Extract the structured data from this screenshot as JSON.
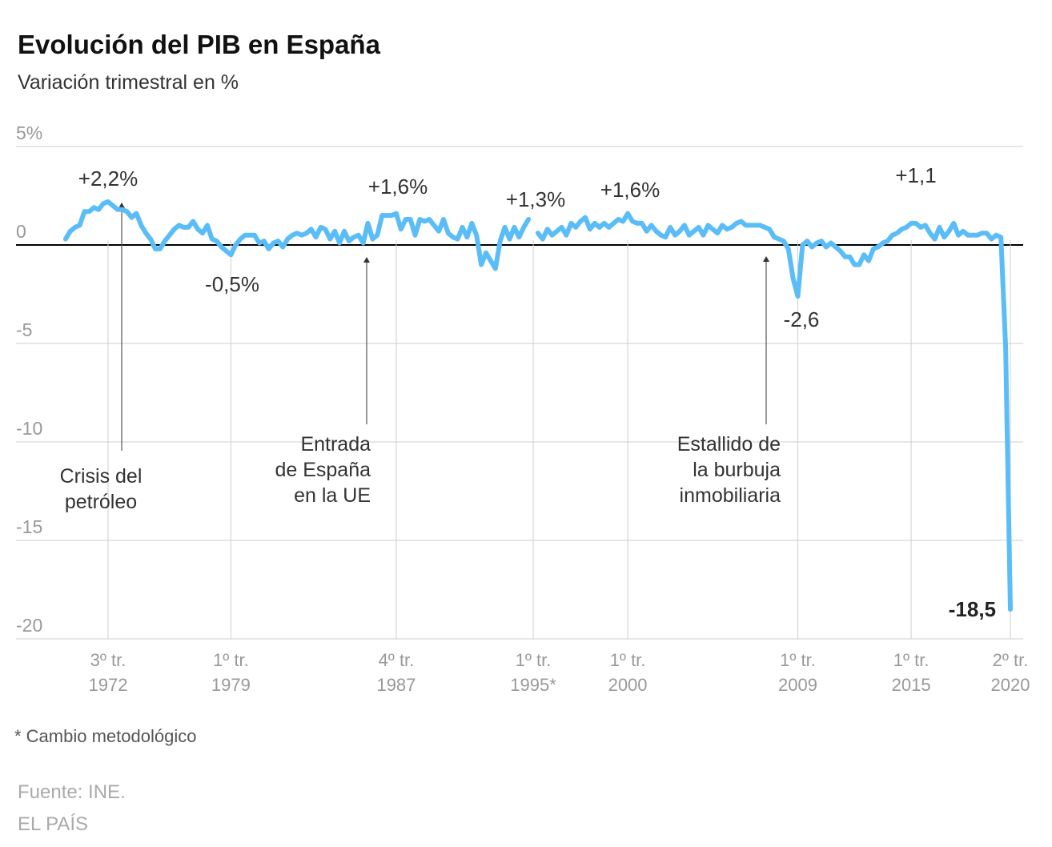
{
  "title": "Evolución del PIB en España",
  "subtitle": "Variación trimestral en %",
  "footnote": "* Cambio metodológico",
  "source": "Fuente: INE.",
  "publisher": "EL PAÍS",
  "chart_data": {
    "type": "line",
    "title": "Evolución del PIB en España",
    "subtitle": "Variación trimestral en %",
    "ylim": [
      -20,
      5
    ],
    "grid": true,
    "line_color": "#5bbdf7",
    "zero_line_color": "#000000",
    "y_ticks": [
      {
        "value": 5,
        "label": "5%"
      },
      {
        "value": 0,
        "label": "0"
      },
      {
        "value": -5,
        "label": "-5"
      },
      {
        "value": -10,
        "label": "-10"
      },
      {
        "value": -15,
        "label": "-15"
      },
      {
        "value": -20,
        "label": "-20"
      }
    ],
    "x_ticks": [
      {
        "year": 1972,
        "quarter": 3,
        "line1": "3º tr.",
        "line2": "1972"
      },
      {
        "year": 1979,
        "quarter": 1,
        "line1": "1º tr.",
        "line2": "1979"
      },
      {
        "year": 1987,
        "quarter": 4,
        "line1": "4º tr.",
        "line2": "1987"
      },
      {
        "year": 1995,
        "quarter": 1,
        "line1": "1º tr.",
        "line2": "1995*"
      },
      {
        "year": 2000,
        "quarter": 1,
        "line1": "1º tr.",
        "line2": "2000"
      },
      {
        "year": 2009,
        "quarter": 1,
        "line1": "1º tr.",
        "line2": "2009"
      },
      {
        "year": 2015,
        "quarter": 1,
        "line1": "1º tr.",
        "line2": "2015"
      },
      {
        "year": 2020,
        "quarter": 2,
        "line1": "2º tr.",
        "line2": "2020"
      }
    ],
    "series": [
      {
        "start": {
          "year": 1970,
          "quarter": 2
        },
        "frequency": "quarterly",
        "values": [
          0.3,
          0.7,
          0.9,
          1.0,
          1.7,
          1.7,
          1.9,
          1.8,
          2.1,
          2.2,
          2.0,
          1.8,
          1.8,
          1.7,
          1.4,
          1.6,
          1.0,
          0.6,
          0.3,
          -0.2,
          -0.2,
          0.2,
          0.5,
          0.8,
          1.0,
          0.9,
          0.9,
          1.2,
          0.8,
          0.6,
          1.0,
          0.3,
          0.2,
          -0.1,
          -0.3,
          -0.5,
          0.0,
          0.3,
          0.5,
          0.5,
          0.5,
          0.1,
          0.2,
          -0.2,
          0.1,
          0.2,
          -0.1,
          0.3,
          0.5,
          0.6,
          0.5,
          0.6,
          0.8,
          0.4,
          0.9,
          0.8,
          0.3,
          0.7,
          0.1,
          0.7,
          0.2,
          0.4,
          0.5,
          0.1,
          1.1,
          0.3,
          0.5,
          1.5,
          1.5,
          1.5,
          1.6,
          0.8,
          1.3,
          1.3,
          0.5,
          1.3,
          1.2,
          1.3,
          1.0,
          0.7,
          1.3,
          0.6,
          0.4,
          0.3,
          0.9,
          0.4,
          1.1,
          0.5,
          -1.0,
          -0.4,
          -0.8,
          -1.2,
          0.2,
          0.9,
          0.3,
          0.9,
          0.4,
          0.9,
          1.3
        ]
      },
      {
        "start": {
          "year": 1995,
          "quarter": 2
        },
        "frequency": "quarterly",
        "values": [
          0.6,
          0.3,
          0.8,
          0.5,
          0.7,
          0.9,
          0.5,
          1.1,
          0.9,
          1.2,
          1.4,
          0.8,
          1.1,
          0.9,
          1.1,
          0.9,
          1.1,
          1.3,
          1.2,
          1.6,
          1.2,
          1.1,
          1.1,
          0.7,
          1.0,
          0.7,
          0.5,
          0.4,
          0.9,
          0.5,
          0.7,
          1.0,
          0.5,
          0.7,
          0.9,
          0.5,
          1.0,
          0.8,
          0.6,
          1.0,
          0.8,
          0.9,
          1.1,
          1.2,
          1.0,
          1.0,
          1.0,
          1.0,
          0.9,
          0.8,
          0.4,
          0.3,
          0.2,
          -0.2,
          -1.7,
          -2.6,
          0.0,
          0.2,
          -0.1,
          0.1,
          0.2,
          -0.1,
          0.1,
          -0.1,
          -0.3,
          -0.6,
          -0.6,
          -1.0,
          -1.0,
          -0.5,
          -0.8,
          -0.2,
          -0.1,
          0.1,
          0.2,
          0.5,
          0.6,
          0.8,
          0.9,
          1.1,
          1.1,
          0.9,
          1.0,
          0.6,
          0.3,
          0.9,
          0.4,
          0.7,
          1.1,
          0.5,
          0.7,
          0.5,
          0.5,
          0.5,
          0.6,
          0.6,
          0.3,
          0.5,
          0.4,
          -5.2,
          -18.5
        ]
      }
    ],
    "value_labels": [
      {
        "year": 1972,
        "quarter": 3,
        "text": "+2,2%"
      },
      {
        "year": 1979,
        "quarter": 1,
        "text": "-0,5%"
      },
      {
        "year": 1987,
        "quarter": 4,
        "text": "+1,6%"
      },
      {
        "year": 1995,
        "quarter": 1,
        "text": "+1,3%"
      },
      {
        "year": 2000,
        "quarter": 1,
        "text": "+1,6%"
      },
      {
        "year": 2009,
        "quarter": 1,
        "text": "-2,6"
      },
      {
        "year": 2015,
        "quarter": 1,
        "text": "+1,1"
      },
      {
        "year": 2020,
        "quarter": 2,
        "text": "-18,5",
        "bold": true
      }
    ],
    "annotations": [
      {
        "lines": [
          "Crisis del",
          "petróleo"
        ]
      },
      {
        "lines": [
          "Entrada",
          "de España",
          "en la UE"
        ]
      },
      {
        "lines": [
          "Estallido de",
          "la burbuja",
          "inmobiliaria"
        ]
      }
    ]
  }
}
